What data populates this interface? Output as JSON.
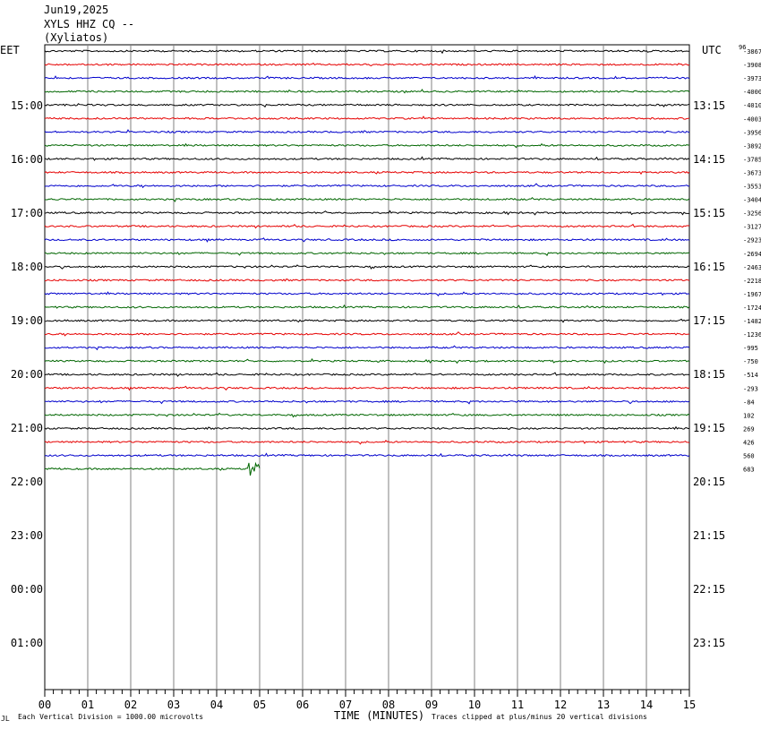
{
  "header": {
    "date": "Jun19,2025",
    "station": "XYLS HHZ CQ --",
    "location": "(Xyliatos)"
  },
  "left_tz": "EET",
  "right_tz": "UTC",
  "footer": {
    "mark": "JL",
    "vertical_division": "Each Vertical Division = 1000.00 microvolts",
    "x_title": "TIME (MINUTES)",
    "clip_note": "Traces clipped at plus/minus 20 vertical divisions"
  },
  "trace_colors": [
    "#000000",
    "#e60000",
    "#0000cc",
    "#006600"
  ],
  "chart_data": {
    "type": "line",
    "title": "XYLS HHZ CQ -- (Xyliatos) Jun19,2025",
    "xlabel": "TIME (MINUTES)",
    "xlim": [
      0,
      15
    ],
    "x_ticks": [
      "00",
      "01",
      "02",
      "03",
      "04",
      "05",
      "06",
      "07",
      "08",
      "09",
      "10",
      "11",
      "12",
      "13",
      "14",
      "15"
    ],
    "left_hour_labels": [
      "15:00",
      "16:00",
      "17:00",
      "18:00",
      "19:00",
      "20:00",
      "21:00",
      "22:00",
      "23:00",
      "00:00",
      "01:00"
    ],
    "right_hour_labels": [
      "13:15",
      "14:15",
      "15:15",
      "16:15",
      "17:15",
      "18:15",
      "19:15",
      "20:15",
      "21:15",
      "22:15",
      "23:15"
    ],
    "trace_offsets": [
      "-3867",
      "-3908",
      "-3973",
      "-4000",
      "-4010",
      "-4003",
      "-3956",
      "-3892",
      "-3785",
      "-3673",
      "-3553",
      "-3404",
      "-3256",
      "-3127",
      "-2923",
      "-2694",
      "-2463",
      "-2218",
      "-1967",
      "-1724",
      "-1482",
      "-1236",
      "-995",
      "-750",
      "-514",
      "-293",
      "-84",
      "102",
      "269",
      "426",
      "560",
      "683"
    ],
    "top_offset_label": "96",
    "last_trace_end_minute": 5.0,
    "event": {
      "start_minute": 4.75,
      "end_minute": 4.98,
      "trace_index": 31
    }
  }
}
